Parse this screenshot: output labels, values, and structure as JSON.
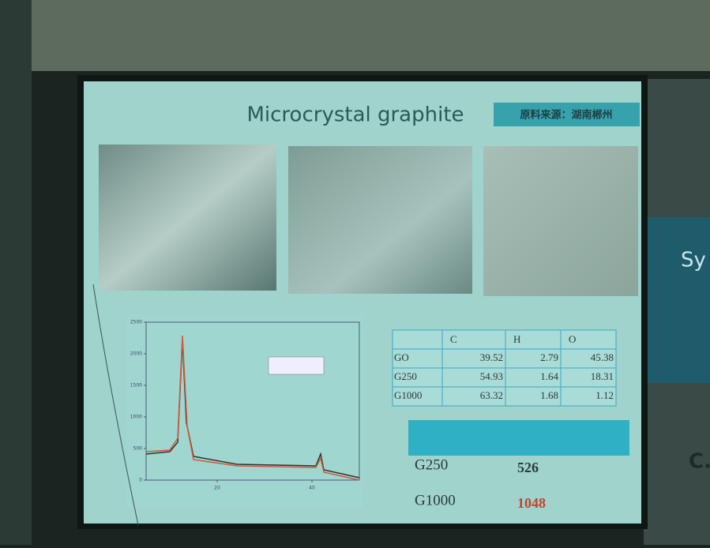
{
  "slide": {
    "title": "Microcrystal graphite",
    "source_label": "原料来源：湖南郴州",
    "xrd_chart": {
      "ylim": [
        0,
        2500
      ],
      "yticks": [
        0,
        500,
        1000,
        1500,
        2000,
        2500
      ],
      "xlim": [
        5,
        50
      ],
      "xticks": [
        20,
        40
      ]
    },
    "table": {
      "headers": [
        "C",
        "H",
        "O"
      ],
      "rows": [
        [
          "GO",
          "39.52",
          "2.79",
          "45.38"
        ],
        [
          "G250",
          "54.93",
          "1.64",
          "18.31"
        ],
        [
          "G1000",
          "63.32",
          "1.68",
          "1.12"
        ]
      ]
    },
    "results": [
      [
        "G250",
        "526"
      ],
      [
        "G1000",
        "1048"
      ]
    ]
  },
  "side_screen": {
    "text": "Sy",
    "text2": "C."
  }
}
